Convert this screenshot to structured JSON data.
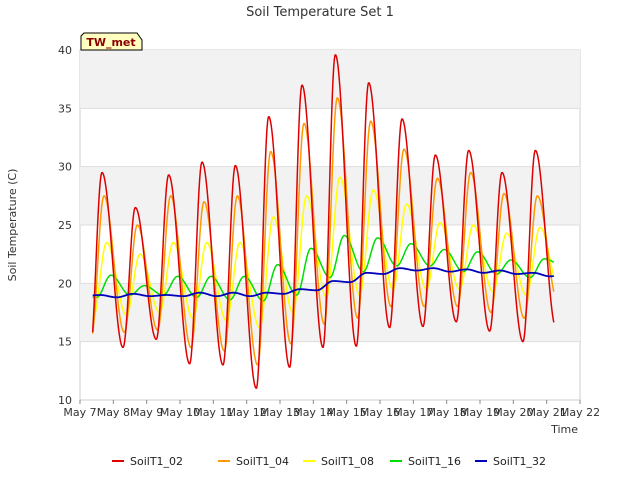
{
  "chart_data": {
    "type": "line",
    "title": "Soil Temperature Set 1",
    "xlabel": "Time",
    "ylabel": "Soil Temperature (C)",
    "annotation": "TW_met",
    "xlim": [
      "2015-05-07",
      "2015-05-22"
    ],
    "ylim": [
      10,
      40
    ],
    "x_ticks": [
      "May 7",
      "May 8",
      "May 9",
      "May 10",
      "May 11",
      "May 12",
      "May 13",
      "May 14",
      "May 15",
      "May 16",
      "May 17",
      "May 18",
      "May 19",
      "May 20",
      "May 21",
      "May 22"
    ],
    "y_ticks": [
      10,
      15,
      20,
      25,
      30,
      35,
      40
    ],
    "grid": true,
    "legend_position": "bottom",
    "x": [
      "2015-05-07",
      "2015-05-08",
      "2015-05-09",
      "2015-05-10",
      "2015-05-11",
      "2015-05-12",
      "2015-05-13",
      "2015-05-14",
      "2015-05-15",
      "2015-05-16",
      "2015-05-17",
      "2015-05-18",
      "2015-05-19",
      "2015-05-20",
      "2015-05-21"
    ],
    "daily_min": {
      "SoilT1_02": [
        13.6,
        14.5,
        15.2,
        13.1,
        13.0,
        11.0,
        12.8,
        14.5,
        14.6,
        16.2,
        16.3,
        16.7,
        15.9,
        15.0,
        16.1
      ],
      "SoilT1_04": [
        15.2,
        15.8,
        16.0,
        14.5,
        14.2,
        13.0,
        14.8,
        16.5,
        17.0,
        18.0,
        18.0,
        18.0,
        17.5,
        17.0,
        18.5
      ],
      "SoilT1_08": [
        17.0,
        17.3,
        17.5,
        17.0,
        16.8,
        16.2,
        17.5,
        18.8,
        19.0,
        19.5,
        19.5,
        19.5,
        19.3,
        19.0,
        19.5
      ],
      "SoilT1_16": [
        18.8,
        19.0,
        19.0,
        18.8,
        18.6,
        18.5,
        19.0,
        20.5,
        21.0,
        21.5,
        21.5,
        21.0,
        20.8,
        20.5,
        21.5
      ],
      "SoilT1_32": [
        18.9,
        18.8,
        18.9,
        18.9,
        18.9,
        18.9,
        19.1,
        19.4,
        20.1,
        20.8,
        21.1,
        21.0,
        20.9,
        20.8,
        20.6
      ]
    },
    "daily_max": {
      "SoilT1_02": [
        29.5,
        26.5,
        29.3,
        30.4,
        30.1,
        34.3,
        37.0,
        39.6,
        37.2,
        34.1,
        31.0,
        31.4,
        29.5,
        31.4,
        22.0
      ],
      "SoilT1_04": [
        27.5,
        25.0,
        27.5,
        27.0,
        27.5,
        31.3,
        33.7,
        35.9,
        33.9,
        31.5,
        29.0,
        29.5,
        27.7,
        27.5,
        20.0
      ],
      "SoilT1_08": [
        23.5,
        22.5,
        23.5,
        23.5,
        23.5,
        25.7,
        27.5,
        29.1,
        28.0,
        26.8,
        25.2,
        25.0,
        24.3,
        24.8,
        21.5
      ],
      "SoilT1_16": [
        20.7,
        19.8,
        20.6,
        20.6,
        20.6,
        21.6,
        23.0,
        24.1,
        23.9,
        23.4,
        22.9,
        22.7,
        22.0,
        22.1,
        22.0
      ],
      "SoilT1_32": [
        19.0,
        19.1,
        19.0,
        19.2,
        19.2,
        19.2,
        19.5,
        20.2,
        20.9,
        21.3,
        21.3,
        21.2,
        21.1,
        20.9,
        20.8
      ]
    },
    "series": [
      {
        "name": "SoilT1_02",
        "color": "#dd0000"
      },
      {
        "name": "SoilT1_04",
        "color": "#ff9900"
      },
      {
        "name": "SoilT1_08",
        "color": "#ffff00"
      },
      {
        "name": "SoilT1_16",
        "color": "#00dd00"
      },
      {
        "name": "SoilT1_32",
        "color": "#0000bb"
      }
    ]
  }
}
